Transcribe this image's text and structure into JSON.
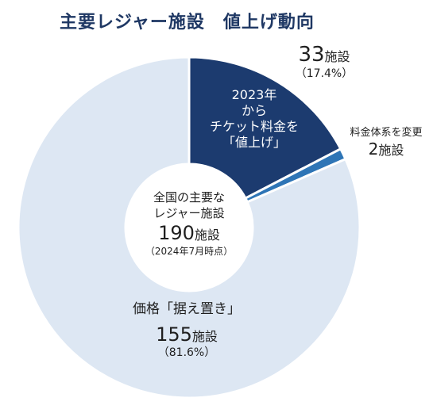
{
  "title": "主要レジャー施設　値上げ動向",
  "chart_data": {
    "type": "pie",
    "style": "donut",
    "total_label": [
      "全国の主要な",
      "レジャー施設"
    ],
    "total_value": "190",
    "total_unit": "施設",
    "total_note": "（2024年7月時点）",
    "slices": [
      {
        "key": "raised",
        "value": 33,
        "unit": "施設",
        "percent_label": "（17.4%）",
        "label_lines": [
          "2023年",
          "から",
          "チケット料金を",
          "「値上げ」"
        ],
        "color": "#1c3b6f"
      },
      {
        "key": "changed",
        "value": 2,
        "unit": "施設",
        "label_lines": [
          "料金体系を変更"
        ],
        "color": "#2e75b6"
      },
      {
        "key": "kept",
        "value": 155,
        "unit": "施設",
        "percent_label": "（81.6%）",
        "label_lines": [
          "価格「据え置き」"
        ],
        "color": "#dde7f3"
      }
    ]
  }
}
